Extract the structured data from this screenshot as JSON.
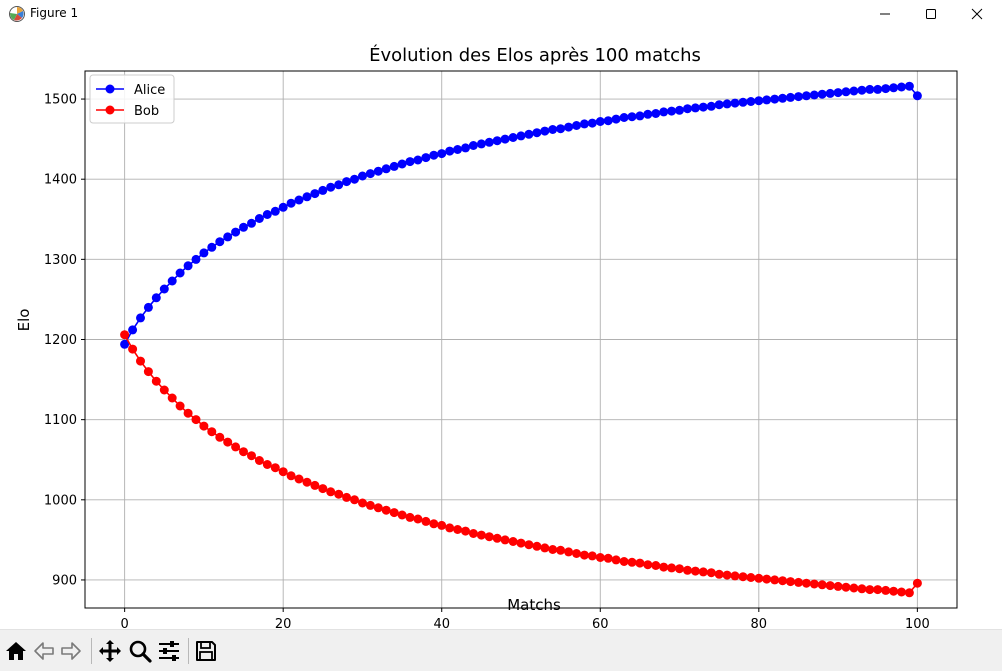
{
  "window": {
    "title": "Figure 1",
    "minimize_icon": "minimize-icon",
    "maximize_icon": "maximize-icon",
    "close_icon": "close-icon"
  },
  "toolbar": {
    "buttons": [
      {
        "icon": "home-icon"
      },
      {
        "icon": "back-arrow-icon"
      },
      {
        "icon": "forward-arrow-icon"
      },
      {
        "icon": "pan-move-icon"
      },
      {
        "icon": "zoom-magnifier-icon"
      },
      {
        "icon": "configure-subplots-icon"
      },
      {
        "icon": "save-floppy-icon"
      }
    ]
  },
  "chart_data": {
    "type": "line",
    "title": "Évolution des Elos après 100 matchs",
    "xlabel": "Matchs",
    "ylabel": "Elo",
    "xlim": [
      -5,
      105
    ],
    "ylim": [
      865,
      1535
    ],
    "xticks": [
      0,
      20,
      40,
      60,
      80,
      100
    ],
    "yticks": [
      900,
      1000,
      1100,
      1200,
      1300,
      1400,
      1500
    ],
    "grid": true,
    "legend_position": "top-left",
    "marker": "circle",
    "series": [
      {
        "name": "Alice",
        "color": "#0000ff",
        "x": [
          0,
          1,
          2,
          3,
          4,
          5,
          6,
          7,
          8,
          9,
          10,
          11,
          12,
          13,
          14,
          15,
          16,
          17,
          18,
          19,
          20,
          21,
          22,
          23,
          24,
          25,
          26,
          27,
          28,
          29,
          30,
          31,
          32,
          33,
          34,
          35,
          36,
          37,
          38,
          39,
          40,
          41,
          42,
          43,
          44,
          45,
          46,
          47,
          48,
          49,
          50,
          51,
          52,
          53,
          54,
          55,
          56,
          57,
          58,
          59,
          60,
          61,
          62,
          63,
          64,
          65,
          66,
          67,
          68,
          69,
          70,
          71,
          72,
          73,
          74,
          75,
          76,
          77,
          78,
          79,
          80,
          81,
          82,
          83,
          84,
          85,
          86,
          87,
          88,
          89,
          90,
          91,
          92,
          93,
          94,
          95,
          96,
          97,
          98,
          99,
          100
        ],
        "values": [
          1194,
          1212,
          1227,
          1240,
          1252,
          1263,
          1273,
          1283,
          1292,
          1300,
          1308,
          1315,
          1322,
          1328,
          1334,
          1340,
          1345,
          1351,
          1356,
          1360,
          1365,
          1370,
          1374,
          1378,
          1382,
          1386,
          1390,
          1393,
          1397,
          1400,
          1404,
          1407,
          1410,
          1413,
          1416,
          1419,
          1422,
          1424,
          1427,
          1430,
          1432,
          1435,
          1437,
          1439,
          1442,
          1444,
          1446,
          1448,
          1450,
          1452,
          1454,
          1456,
          1458,
          1460,
          1462,
          1463,
          1465,
          1467,
          1469,
          1470,
          1472,
          1473,
          1475,
          1477,
          1478,
          1479,
          1481,
          1482,
          1484,
          1485,
          1486,
          1488,
          1489,
          1490,
          1491,
          1493,
          1494,
          1495,
          1496,
          1497,
          1498,
          1499,
          1500,
          1501,
          1502,
          1503,
          1504,
          1505,
          1506,
          1507,
          1508,
          1509,
          1510,
          1511,
          1512,
          1512,
          1513,
          1514,
          1515,
          1516,
          1504
        ]
      },
      {
        "name": "Bob",
        "color": "#ff0000",
        "x": [
          0,
          1,
          2,
          3,
          4,
          5,
          6,
          7,
          8,
          9,
          10,
          11,
          12,
          13,
          14,
          15,
          16,
          17,
          18,
          19,
          20,
          21,
          22,
          23,
          24,
          25,
          26,
          27,
          28,
          29,
          30,
          31,
          32,
          33,
          34,
          35,
          36,
          37,
          38,
          39,
          40,
          41,
          42,
          43,
          44,
          45,
          46,
          47,
          48,
          49,
          50,
          51,
          52,
          53,
          54,
          55,
          56,
          57,
          58,
          59,
          60,
          61,
          62,
          63,
          64,
          65,
          66,
          67,
          68,
          69,
          70,
          71,
          72,
          73,
          74,
          75,
          76,
          77,
          78,
          79,
          80,
          81,
          82,
          83,
          84,
          85,
          86,
          87,
          88,
          89,
          90,
          91,
          92,
          93,
          94,
          95,
          96,
          97,
          98,
          99,
          100
        ],
        "values": [
          1206,
          1188,
          1173,
          1160,
          1148,
          1137,
          1127,
          1117,
          1108,
          1100,
          1092,
          1085,
          1078,
          1072,
          1066,
          1060,
          1055,
          1049,
          1044,
          1040,
          1035,
          1030,
          1026,
          1022,
          1018,
          1014,
          1010,
          1007,
          1003,
          1000,
          996,
          993,
          990,
          987,
          984,
          981,
          978,
          976,
          973,
          970,
          968,
          965,
          963,
          961,
          958,
          956,
          954,
          952,
          950,
          948,
          946,
          944,
          942,
          940,
          938,
          937,
          935,
          933,
          931,
          930,
          928,
          927,
          925,
          923,
          922,
          921,
          919,
          918,
          916,
          915,
          914,
          912,
          911,
          910,
          909,
          907,
          906,
          905,
          904,
          903,
          902,
          901,
          900,
          899,
          898,
          897,
          896,
          895,
          894,
          893,
          892,
          891,
          890,
          889,
          888,
          888,
          887,
          886,
          885,
          884,
          896
        ]
      }
    ]
  }
}
